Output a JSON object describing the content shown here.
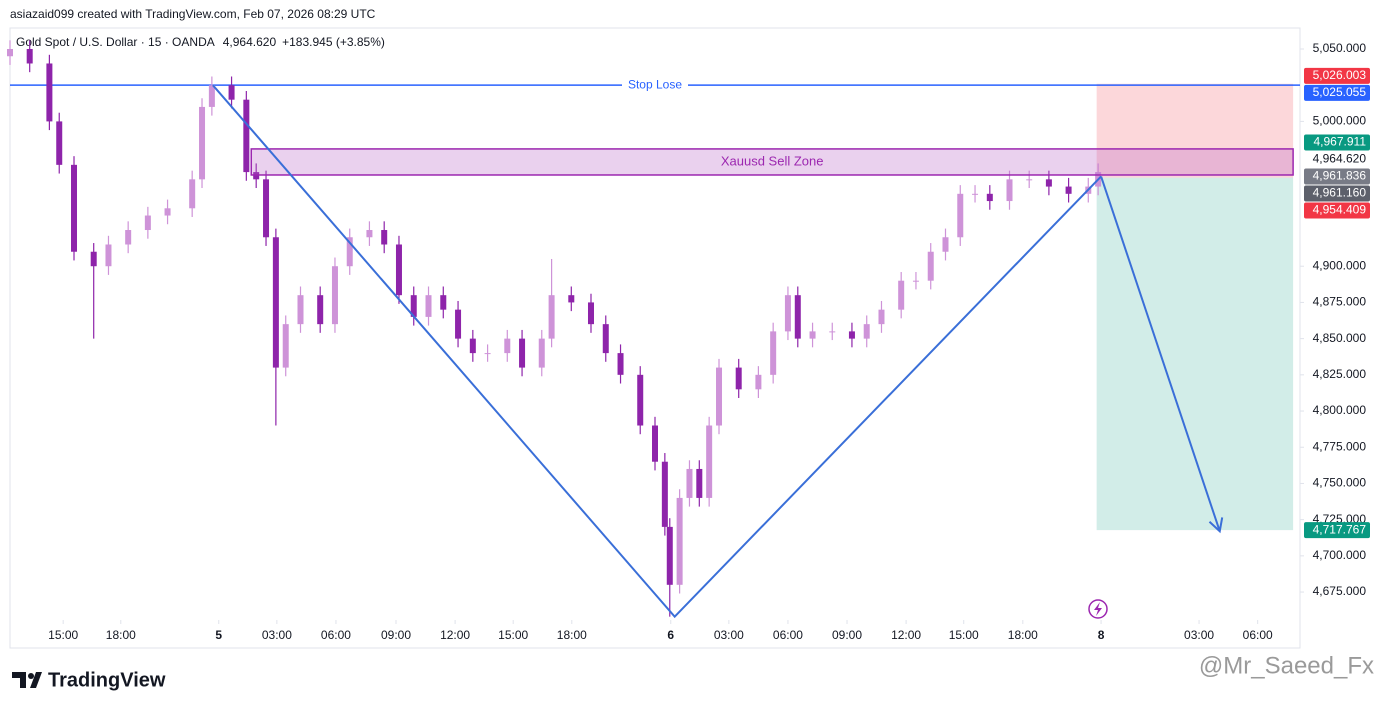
{
  "chart_data": {
    "type": "candlestick",
    "source_note": "asiazaid099 created with TradingView.com, Feb 07, 2026 08:29 UTC",
    "title": "Gold Spot / U.S. Dollar · 15 · OANDA",
    "last_price": "4,964.620",
    "change": "+183.945 (+3.85%)",
    "brand": "TradingView",
    "watermark": "@Mr_Saeed_Fx",
    "up_color": "#ce93d8",
    "down_color": "#8e24aa",
    "xlim": [
      0,
      262
    ],
    "ylim": [
      4655.7,
      5064.5
    ],
    "yticks": [
      {
        "value": 4675,
        "label": "4,675.000"
      },
      {
        "value": 4700,
        "label": "4,700.000"
      },
      {
        "value": 4725,
        "label": "4,725.000"
      },
      {
        "value": 4750,
        "label": "4,750.000"
      },
      {
        "value": 4775,
        "label": "4,775.000"
      },
      {
        "value": 4800,
        "label": "4,800.000"
      },
      {
        "value": 4825,
        "label": "4,825.000"
      },
      {
        "value": 4850,
        "label": "4,850.000"
      },
      {
        "value": 4875,
        "label": "4,875.000"
      },
      {
        "value": 4900,
        "label": "4,900.000"
      },
      {
        "value": 5000,
        "label": "5,000.000"
      },
      {
        "value": 5050,
        "label": "5,050.000"
      }
    ],
    "xticks": [
      {
        "value": 10.8,
        "label": "15:00"
      },
      {
        "value": 22.5,
        "label": "18:00"
      },
      {
        "value": 42.4,
        "label": "5"
      },
      {
        "value": 54.2,
        "label": "03:00"
      },
      {
        "value": 66.2,
        "label": "06:00"
      },
      {
        "value": 78.4,
        "label": "09:00"
      },
      {
        "value": 90.4,
        "label": "12:00"
      },
      {
        "value": 102.2,
        "label": "15:00"
      },
      {
        "value": 114.1,
        "label": "18:00"
      },
      {
        "value": 134.2,
        "label": "6"
      },
      {
        "value": 146,
        "label": "03:00"
      },
      {
        "value": 158,
        "label": "06:00"
      },
      {
        "value": 170,
        "label": "09:00"
      },
      {
        "value": 182,
        "label": "12:00"
      },
      {
        "value": 193.7,
        "label": "15:00"
      },
      {
        "value": 205.7,
        "label": "18:00"
      },
      {
        "value": 221.6,
        "label": "8"
      },
      {
        "value": 241.5,
        "label": "03:00"
      },
      {
        "value": 253.4,
        "label": "06:00"
      }
    ],
    "candles": {
      "x": [
        0,
        4,
        8,
        10,
        13,
        17,
        20,
        24,
        28,
        32,
        37,
        39,
        41,
        45,
        48,
        50,
        52,
        54,
        56,
        59,
        63,
        66,
        69,
        73,
        76,
        79,
        82,
        85,
        88,
        91,
        94,
        97,
        101,
        104,
        108,
        110,
        114,
        118,
        121,
        124,
        128,
        131,
        133,
        134,
        136,
        138,
        140,
        142,
        144,
        148,
        152,
        155,
        158,
        160,
        163,
        167,
        171,
        174,
        177,
        181,
        184,
        187,
        190,
        193,
        196,
        199,
        203,
        207,
        211,
        215,
        219,
        221
      ],
      "open": [
        5045,
        5050,
        5040,
        5000,
        4970,
        4910,
        4900,
        4915,
        4925,
        4935,
        4940,
        4960,
        5010,
        5025,
        5015,
        4965,
        4960,
        4920,
        4830,
        4860,
        4880,
        4860,
        4900,
        4920,
        4925,
        4915,
        4880,
        4865,
        4880,
        4870,
        4850,
        4840,
        4840,
        4850,
        4830,
        4850,
        4880,
        4875,
        4860,
        4840,
        4825,
        4790,
        4765,
        4720,
        4680,
        4740,
        4760,
        4740,
        4790,
        4830,
        4815,
        4825,
        4855,
        4880,
        4850,
        4855,
        4855,
        4850,
        4860,
        4870,
        4890,
        4890,
        4910,
        4920,
        4950,
        4950,
        4945,
        4960,
        4960,
        4955,
        4950,
        4955
      ],
      "high": [
        5056,
        5056,
        5046,
        5006,
        4976,
        4916,
        4921,
        4931,
        4941,
        4946,
        4966,
        5016,
        5031,
        5031,
        5021,
        4971,
        4966,
        4926,
        4866,
        4886,
        4886,
        4906,
        4926,
        4931,
        4931,
        4921,
        4886,
        4886,
        4886,
        4876,
        4856,
        4846,
        4856,
        4856,
        4856,
        4905,
        4886,
        4881,
        4866,
        4846,
        4831,
        4796,
        4771,
        4726,
        4746,
        4766,
        4766,
        4796,
        4836,
        4836,
        4831,
        4861,
        4886,
        4886,
        4861,
        4861,
        4861,
        4866,
        4876,
        4896,
        4896,
        4916,
        4926,
        4956,
        4956,
        4956,
        4966,
        4966,
        4966,
        4961,
        4961,
        4971
      ],
      "low": [
        5039,
        5034,
        4994,
        4964,
        4904,
        4850,
        4894,
        4909,
        4919,
        4929,
        4934,
        4954,
        5004,
        5009,
        4959,
        4954,
        4914,
        4790,
        4824,
        4854,
        4854,
        4854,
        4894,
        4914,
        4909,
        4874,
        4859,
        4859,
        4864,
        4844,
        4834,
        4834,
        4834,
        4824,
        4824,
        4844,
        4869,
        4854,
        4834,
        4819,
        4784,
        4759,
        4714,
        4658,
        4674,
        4734,
        4734,
        4734,
        4784,
        4809,
        4809,
        4819,
        4849,
        4844,
        4844,
        4849,
        4844,
        4844,
        4854,
        4864,
        4884,
        4884,
        4904,
        4914,
        4944,
        4939,
        4939,
        4954,
        4949,
        4944,
        4944,
        4949
      ],
      "close": [
        5050,
        5040,
        5000,
        4970,
        4910,
        4900,
        4915,
        4925,
        4935,
        4940,
        4960,
        5010,
        5025,
        5015,
        4965,
        4960,
        4920,
        4830,
        4860,
        4880,
        4860,
        4900,
        4920,
        4925,
        4915,
        4880,
        4865,
        4880,
        4870,
        4850,
        4840,
        4840,
        4850,
        4830,
        4850,
        4880,
        4875,
        4860,
        4840,
        4825,
        4790,
        4765,
        4720,
        4680,
        4740,
        4760,
        4740,
        4790,
        4830,
        4815,
        4825,
        4855,
        4880,
        4850,
        4855,
        4855,
        4850,
        4860,
        4870,
        4890,
        4890,
        4910,
        4920,
        4950,
        4950,
        4945,
        4960,
        4960,
        4955,
        4950,
        4955,
        4965
      ]
    },
    "stop_line": {
      "label": "Stop Lose",
      "value": 5025.055,
      "color": "#2962ff"
    },
    "zone": {
      "label": "Xauusd Sell Zone",
      "top": 4981,
      "bottom": 4963,
      "x": [
        49,
        260.6
      ],
      "color": "#9c27b0"
    },
    "position": {
      "x": [
        220.7,
        260.6
      ],
      "stop": 5026.003,
      "entry": 4961.16,
      "target": 4717.767
    },
    "trend_line": {
      "x": [
        41.2,
        135,
        221.6
      ],
      "y": [
        5025,
        4658,
        4962
      ],
      "color": "#3a6fd8"
    },
    "arrow": {
      "x": [
        221.6,
        245.7
      ],
      "y": [
        4962,
        4717
      ],
      "color": "#3a6fd8"
    },
    "price_labels": [
      {
        "value": 5026.003,
        "label": "5,026.003",
        "color": "#f23645"
      },
      {
        "value": 5025.055,
        "label": "5,025.055",
        "color": "#2962ff"
      },
      {
        "value": 4967.911,
        "label": "4,967.911",
        "color": "#089981"
      },
      {
        "value": 4964.62,
        "label": "4,964.620",
        "color": "#ffffff"
      },
      {
        "value": 4961.836,
        "label": "4,961.836",
        "color": "#787b86"
      },
      {
        "value": 4961.16,
        "label": "4,961.160",
        "color": "#5d606b"
      },
      {
        "value": 4954.409,
        "label": "4,954.409",
        "color": "#f23645"
      },
      {
        "value": 4717.767,
        "label": "4,717.767",
        "color": "#089981"
      }
    ]
  }
}
